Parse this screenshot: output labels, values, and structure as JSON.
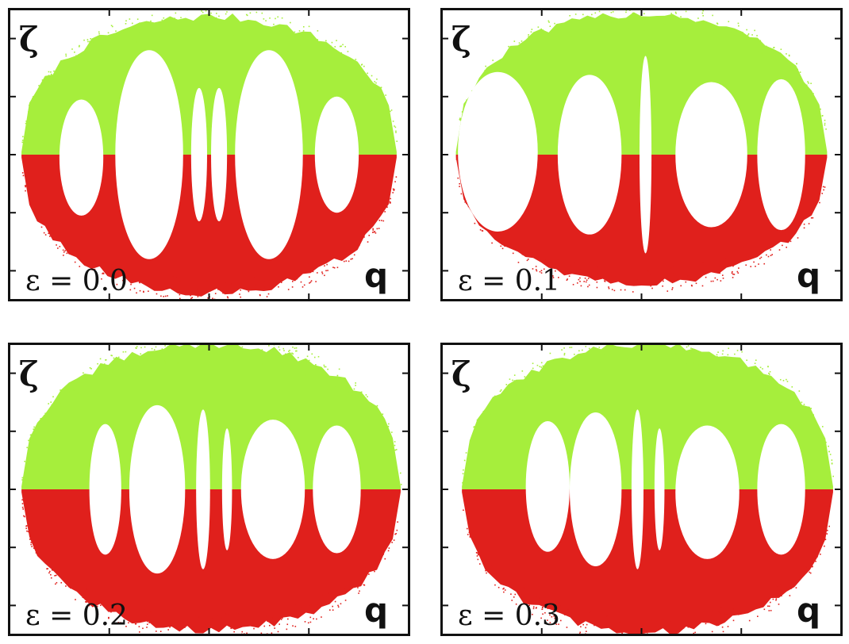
{
  "figure": {
    "colors": {
      "upper": "#a6ee3c",
      "lower": "#e0201c",
      "island": "#ffffff",
      "frame": "#111111"
    },
    "zeta_label": "ζ",
    "q_label": "q"
  },
  "chart_data": [
    {
      "type": "scatter",
      "title": "",
      "annotation": "ε = 0.0",
      "epsilon": 0.0,
      "xlabel": "q",
      "ylabel": "ζ",
      "xlim": [
        -1,
        1
      ],
      "ylim": [
        -1,
        1
      ],
      "series": [
        {
          "region": "upper",
          "color": "#a6ee3c",
          "extent_q": [
            -0.94,
            0.94
          ],
          "max_zeta": 0.95
        },
        {
          "region": "lower",
          "color": "#e0201c",
          "extent_q": [
            -0.94,
            0.94
          ],
          "min_zeta": -0.95
        }
      ],
      "islands": [
        {
          "q": -0.64,
          "zeta": -0.02,
          "dq": 0.11,
          "dz": 0.4
        },
        {
          "q": -0.3,
          "zeta": 0.0,
          "dq": 0.17,
          "dz": 0.72
        },
        {
          "q": -0.05,
          "zeta": 0.0,
          "dq": 0.04,
          "dz": 0.46
        },
        {
          "q": 0.05,
          "zeta": 0.0,
          "dq": 0.04,
          "dz": 0.46
        },
        {
          "q": 0.3,
          "zeta": 0.0,
          "dq": 0.17,
          "dz": 0.72
        },
        {
          "q": 0.64,
          "zeta": 0.0,
          "dq": 0.11,
          "dz": 0.4
        }
      ]
    },
    {
      "type": "scatter",
      "title": "",
      "annotation": "ε = 0.1",
      "epsilon": 0.1,
      "xlabel": "q",
      "ylabel": "ζ",
      "xlim": [
        -1,
        1
      ],
      "ylim": [
        -1,
        1
      ],
      "series": [
        {
          "region": "upper",
          "color": "#a6ee3c",
          "extent_q": [
            -0.93,
            0.93
          ],
          "max_zeta": 0.97
        },
        {
          "region": "lower",
          "color": "#e0201c",
          "extent_q": [
            -0.93,
            0.93
          ],
          "min_zeta": -0.88
        }
      ],
      "islands": [
        {
          "q": -0.72,
          "zeta": 0.02,
          "dq": 0.2,
          "dz": 0.55
        },
        {
          "q": -0.26,
          "zeta": 0.0,
          "dq": 0.16,
          "dz": 0.55
        },
        {
          "q": 0.02,
          "zeta": 0.0,
          "dq": 0.03,
          "dz": 0.68
        },
        {
          "q": 0.35,
          "zeta": 0.0,
          "dq": 0.18,
          "dz": 0.5
        },
        {
          "q": 0.7,
          "zeta": 0.0,
          "dq": 0.12,
          "dz": 0.52
        }
      ]
    },
    {
      "type": "scatter",
      "title": "",
      "annotation": "ε = 0.2",
      "epsilon": 0.2,
      "xlabel": "q",
      "ylabel": "ζ",
      "xlim": [
        -1,
        1
      ],
      "ylim": [
        -1,
        1
      ],
      "series": [
        {
          "region": "upper",
          "color": "#a6ee3c",
          "extent_q": [
            -0.94,
            0.96
          ],
          "max_zeta": 1.0
        },
        {
          "region": "lower",
          "color": "#e0201c",
          "extent_q": [
            -0.94,
            0.96
          ],
          "min_zeta": -0.97
        }
      ],
      "islands": [
        {
          "q": -0.52,
          "zeta": 0.0,
          "dq": 0.08,
          "dz": 0.45
        },
        {
          "q": -0.26,
          "zeta": 0.0,
          "dq": 0.14,
          "dz": 0.58
        },
        {
          "q": -0.03,
          "zeta": 0.0,
          "dq": 0.035,
          "dz": 0.55
        },
        {
          "q": 0.09,
          "zeta": 0.0,
          "dq": 0.025,
          "dz": 0.42
        },
        {
          "q": 0.32,
          "zeta": 0.0,
          "dq": 0.16,
          "dz": 0.48
        },
        {
          "q": 0.64,
          "zeta": 0.0,
          "dq": 0.12,
          "dz": 0.44
        }
      ]
    },
    {
      "type": "scatter",
      "title": "",
      "annotation": "ε = 0.3",
      "epsilon": 0.3,
      "xlabel": "q",
      "ylabel": "ζ",
      "xlim": [
        -1,
        1
      ],
      "ylim": [
        -1,
        1
      ],
      "series": [
        {
          "region": "upper",
          "color": "#a6ee3c",
          "extent_q": [
            -0.9,
            0.96
          ],
          "max_zeta": 1.0
        },
        {
          "region": "lower",
          "color": "#e0201c",
          "extent_q": [
            -0.9,
            0.96
          ],
          "min_zeta": -0.98
        }
      ],
      "islands": [
        {
          "q": -0.47,
          "zeta": 0.02,
          "dq": 0.11,
          "dz": 0.45
        },
        {
          "q": -0.23,
          "zeta": 0.0,
          "dq": 0.13,
          "dz": 0.53
        },
        {
          "q": -0.02,
          "zeta": 0.0,
          "dq": 0.03,
          "dz": 0.55
        },
        {
          "q": 0.09,
          "zeta": 0.0,
          "dq": 0.025,
          "dz": 0.42
        },
        {
          "q": 0.33,
          "zeta": -0.02,
          "dq": 0.16,
          "dz": 0.46
        },
        {
          "q": 0.7,
          "zeta": 0.0,
          "dq": 0.12,
          "dz": 0.45
        }
      ]
    }
  ]
}
